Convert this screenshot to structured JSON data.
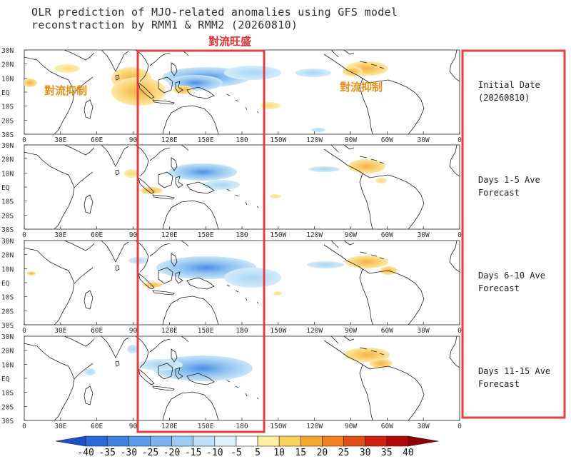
{
  "title": {
    "line1": "OLR prediction of MJO-related anomalies using GFS model",
    "line2": "reconstraction by RMM1 & RMM2 (20260810)"
  },
  "annotations": {
    "convection_active": "對流旺盛",
    "convection_suppressed_left": "對流抑制",
    "convection_suppressed_right": "對流抑制"
  },
  "lat_labels": [
    "30N",
    "20N",
    "10N",
    "EQ",
    "10S",
    "20S",
    "30S"
  ],
  "lon_labels": [
    "0",
    "30E",
    "60E",
    "90",
    "120E",
    "150E",
    "180",
    "150W",
    "120W",
    "90W",
    "60W",
    "30W",
    "0"
  ],
  "panels": [
    {
      "label_line1": "Initial Date",
      "label_line2": "(20260810)"
    },
    {
      "label_line1": "Days 1-5 Ave",
      "label_line2": "Forecast"
    },
    {
      "label_line1": "Days 6-10 Ave",
      "label_line2": "Forecast"
    },
    {
      "label_line1": "Days 11-15 Ave",
      "label_line2": "Forecast"
    }
  ],
  "colorbar": {
    "labels": [
      "-40",
      "-35",
      "-30",
      "-25",
      "-20",
      "-15",
      "-10",
      "-5",
      "5",
      "10",
      "15",
      "20",
      "25",
      "30",
      "35",
      "40"
    ],
    "colors": [
      "#1a50c8",
      "#2a6ad8",
      "#3d82e0",
      "#5a9ae8",
      "#7ab4ee",
      "#9ccaf2",
      "#bfe0f6",
      "#dff0fb",
      "#ffffff",
      "#fdf0a0",
      "#fbd060",
      "#f4a830",
      "#ee8020",
      "#e05018",
      "#d02010",
      "#b00808",
      "#900000"
    ]
  },
  "colors": {
    "highlight_box": "#e53e3e",
    "suppressed_text": "#e8901a",
    "active_text": "#e03030"
  }
}
